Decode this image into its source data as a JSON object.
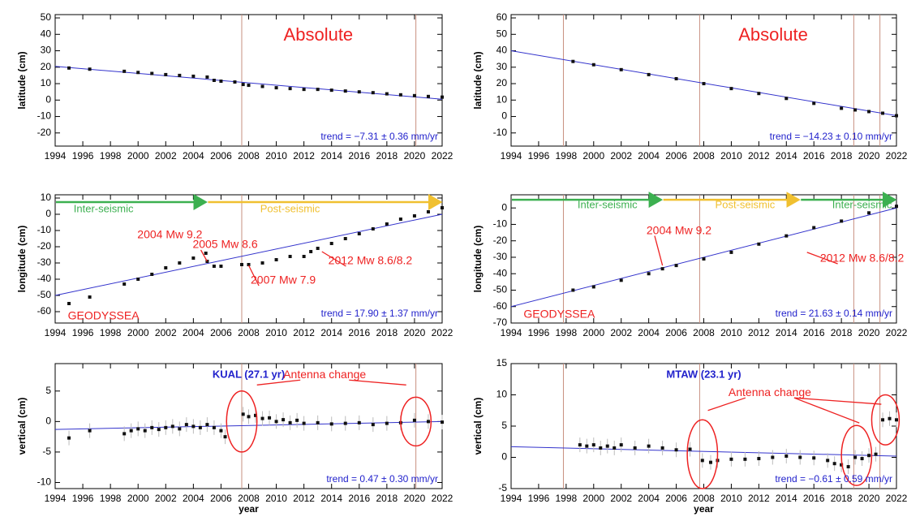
{
  "chart_data": [
    {
      "type": "scatter",
      "title": "Absolute",
      "ylabel": "latitude (cm)",
      "trend_text": "trend = −7.31 ± 0.36 mm/yr",
      "xlim": [
        1994,
        2022
      ],
      "xticks": [
        1994,
        1996,
        1998,
        2000,
        2002,
        2004,
        2006,
        2008,
        2010,
        2012,
        2014,
        2016,
        2018,
        2020,
        2022
      ],
      "ylim": [
        -28,
        52
      ],
      "yticks": [
        -20,
        -10,
        0,
        10,
        20,
        30,
        40,
        50
      ],
      "events": [
        2007.5,
        2020.1
      ],
      "x": [
        1995,
        1996.5,
        1999,
        2000,
        2001,
        2002,
        2003,
        2004,
        2005,
        2005.5,
        2006,
        2007,
        2007.6,
        2008,
        2009,
        2010,
        2011,
        2012,
        2013,
        2014,
        2015,
        2016,
        2017,
        2018,
        2019,
        2020,
        2021,
        2022
      ],
      "values": [
        19.5,
        18.8,
        17.5,
        16.8,
        16.2,
        15.5,
        15,
        14.5,
        14,
        12,
        11.5,
        11,
        9.5,
        9,
        8.3,
        7.5,
        7,
        6.5,
        6.5,
        6,
        5.5,
        5,
        4.5,
        3.8,
        3.2,
        2.7,
        2.2,
        1.8
      ],
      "trend_line": {
        "x": [
          1994,
          2022
        ],
        "values": [
          20.5,
          0.5
        ]
      }
    },
    {
      "type": "scatter",
      "title": "Absolute",
      "ylabel": "latitude (cm)",
      "trend_text": "trend = −14.23 ± 0.10 mm/yr",
      "xlim": [
        1994,
        2022
      ],
      "xticks": [
        1994,
        1996,
        1998,
        2000,
        2002,
        2004,
        2006,
        2008,
        2010,
        2012,
        2014,
        2016,
        2018,
        2020,
        2022
      ],
      "ylim": [
        -18,
        62
      ],
      "yticks": [
        -10,
        0,
        10,
        20,
        30,
        40,
        50,
        60
      ],
      "events": [
        1997.8,
        2007.7,
        2018.9,
        2020.8
      ],
      "x": [
        1998.5,
        2000,
        2002,
        2004,
        2006,
        2008,
        2010,
        2012,
        2014,
        2016,
        2018,
        2019,
        2020,
        2021,
        2022
      ],
      "values": [
        33.5,
        31.5,
        28.5,
        25.5,
        23,
        20,
        17,
        14,
        11,
        8,
        5,
        4,
        3,
        2,
        0.5
      ],
      "trend_line": {
        "x": [
          1994,
          2022
        ],
        "values": [
          40,
          0.5
        ]
      }
    },
    {
      "type": "scatter",
      "ylabel": "longitude (cm)",
      "trend_text": "trend = 17.90 ± 1.37 mm/yr",
      "annotations": [
        "Inter-seismic",
        "Post-seismic",
        "2004 Mw 9.2",
        "2005 Mw 8.6",
        "2007 Mw 7.9",
        "2012 Mw 8.6/8.2",
        "GEODYSSEA"
      ],
      "xlim": [
        1994,
        2022
      ],
      "xticks": [
        1994,
        1996,
        1998,
        2000,
        2002,
        2004,
        2006,
        2008,
        2010,
        2012,
        2014,
        2016,
        2018,
        2020,
        2022
      ],
      "ylim": [
        -67,
        12
      ],
      "yticks": [
        -60,
        -50,
        -40,
        -30,
        -20,
        -10,
        0,
        10
      ],
      "events": [
        2007.5
      ],
      "x": [
        1995,
        1996.5,
        1999,
        2000,
        2001,
        2002,
        2003,
        2004,
        2004.9,
        2005,
        2005.5,
        2006,
        2007.5,
        2008,
        2009,
        2010,
        2011,
        2012,
        2012.5,
        2013,
        2014,
        2015,
        2016,
        2017,
        2018,
        2019,
        2020,
        2021,
        2022
      ],
      "values": [
        -55,
        -51,
        -43,
        -40,
        -37,
        -33,
        -30,
        -27,
        -24,
        -29,
        -32,
        -32,
        -31,
        -31,
        -30,
        -28,
        -26,
        -26,
        -23,
        -21,
        -18,
        -15,
        -12,
        -9,
        -6,
        -3,
        -1,
        1.5,
        4
      ],
      "trend_line": {
        "x": [
          1994,
          2022
        ],
        "values": [
          -50,
          0
        ]
      }
    },
    {
      "type": "scatter",
      "ylabel": "longitude (cm)",
      "trend_text": "trend = 21.63 ± 0.14 mm/yr",
      "annotations": [
        "Inter-seismic",
        "Post-seismic",
        "Inter-seismic",
        "2004 Mw 9.2",
        "2012 Mw 8.6/8.2",
        "GEODYSSEA"
      ],
      "xlim": [
        1994,
        2022
      ],
      "xticks": [
        1994,
        1996,
        1998,
        2000,
        2002,
        2004,
        2006,
        2008,
        2010,
        2012,
        2014,
        2016,
        2018,
        2020,
        2022
      ],
      "ylim": [
        -70,
        8
      ],
      "yticks": [
        -70,
        -60,
        -50,
        -40,
        -30,
        -20,
        -10,
        0
      ],
      "events": [
        1997.8,
        2007.7,
        2018.9,
        2020.8
      ],
      "x": [
        1998.5,
        2000,
        2002,
        2004,
        2005,
        2006,
        2008,
        2010,
        2012,
        2014,
        2016,
        2018,
        2020,
        2022
      ],
      "values": [
        -50,
        -48,
        -44,
        -40,
        -37,
        -35,
        -31,
        -27,
        -22,
        -17,
        -12,
        -8,
        -3,
        1
      ],
      "trend_line": {
        "x": [
          1994,
          2022
        ],
        "values": [
          -60,
          0
        ]
      }
    },
    {
      "type": "scatter",
      "title": "KUAL (27.1 yr)",
      "ylabel": "vertical (cm)",
      "xlabel": "year",
      "trend_text": "trend = 0.47 ± 0.30 mm/yr",
      "annotations": [
        "Antenna  change"
      ],
      "xlim": [
        1994,
        2022
      ],
      "xticks": [
        1994,
        1996,
        1998,
        2000,
        2002,
        2004,
        2006,
        2008,
        2010,
        2012,
        2014,
        2016,
        2018,
        2020,
        2022
      ],
      "ylim": [
        -11,
        9.5
      ],
      "yticks": [
        -10,
        -5,
        0,
        5
      ],
      "events": [
        2007.5,
        2020.1
      ],
      "x": [
        1995,
        1996.5,
        1999,
        1999.5,
        2000,
        2000.5,
        2001,
        2001.5,
        2002,
        2002.5,
        2003,
        2003.5,
        2004,
        2004.5,
        2005,
        2005.5,
        2006,
        2006.3,
        2007.6,
        2008,
        2008.5,
        2009,
        2009.5,
        2010,
        2010.5,
        2011,
        2011.5,
        2012,
        2013,
        2014,
        2015,
        2016,
        2017,
        2018,
        2019,
        2020,
        2021,
        2022
      ],
      "values": [
        -2.7,
        -1.5,
        -2,
        -1.5,
        -1.2,
        -1.5,
        -1,
        -1.3,
        -1,
        -0.8,
        -1.2,
        -0.5,
        -0.8,
        -1,
        -0.5,
        -1,
        -1.5,
        -2.5,
        1.2,
        0.8,
        1,
        0.5,
        0.6,
        0,
        0.3,
        -0.2,
        0.2,
        -0.3,
        -0.2,
        -0.4,
        -0.3,
        -0.2,
        -0.5,
        -0.3,
        -0.2,
        0.2,
        0,
        -0.1
      ],
      "trend_line": {
        "x": [
          1994,
          2022
        ],
        "values": [
          -1.3,
          0
        ]
      }
    },
    {
      "type": "scatter",
      "title": "MTAW (23.1 yr)",
      "ylabel": "vertical (cm)",
      "xlabel": "year",
      "trend_text": "trend = −0.61 ± 0.59 mm/yr",
      "annotations": [
        "Antenna  change"
      ],
      "xlim": [
        1994,
        2022
      ],
      "xticks": [
        1994,
        1996,
        1998,
        2000,
        2002,
        2004,
        2006,
        2008,
        2010,
        2012,
        2014,
        2016,
        2018,
        2020,
        2022
      ],
      "ylim": [
        -5,
        15
      ],
      "yticks": [
        -5,
        0,
        5,
        10,
        15
      ],
      "events": [
        1997.8,
        2007.7,
        2018.9,
        2020.8
      ],
      "x": [
        1999,
        1999.5,
        2000,
        2000.5,
        2001,
        2001.5,
        2002,
        2003,
        2004,
        2005,
        2006,
        2007,
        2007.9,
        2008.5,
        2009,
        2010,
        2011,
        2012,
        2013,
        2014,
        2015,
        2016,
        2017,
        2017.5,
        2018,
        2018.5,
        2019,
        2019.5,
        2020,
        2020.5,
        2021,
        2021.5,
        2022
      ],
      "values": [
        2,
        1.8,
        2,
        1.5,
        1.8,
        1.5,
        2,
        1.5,
        1.8,
        1.5,
        1.2,
        1.3,
        -0.5,
        -0.8,
        -0.5,
        -0.3,
        -0.3,
        -0.2,
        0,
        0.2,
        0,
        -0.1,
        -0.5,
        -1,
        -1.2,
        -1.5,
        0,
        -0.2,
        0.3,
        0.5,
        6,
        6.2,
        6
      ],
      "trend_line": {
        "x": [
          1994,
          2022
        ],
        "values": [
          1.7,
          0.2
        ]
      }
    }
  ]
}
